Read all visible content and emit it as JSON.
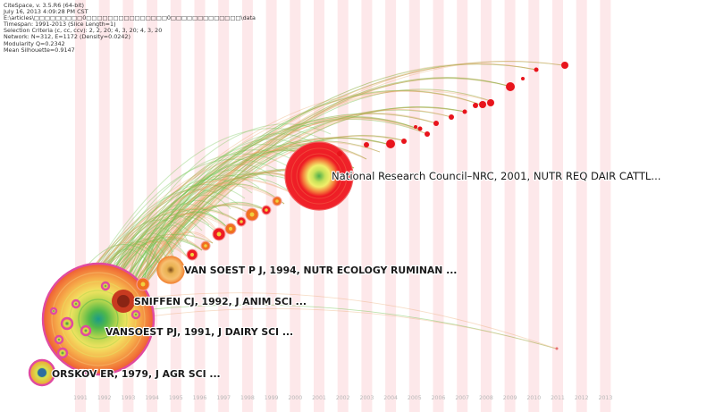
{
  "info_panel": {
    "lines": [
      "CiteSpace, v. 3.5.R6 (64-bit)",
      "July 16, 2013 4:09:28 PM CST",
      "E:\\articles\\□□□□□□□□□0□□□□□□□□□□□□□□□0□□□□□□□□□□□□□\\data",
      "Timespan: 1991-2013 (Slice Length=1)",
      "Selection Criteria (c, cc, ccv): 2, 2, 20; 4, 3, 20; 4, 3, 20",
      "Network: N=312, E=1172 (Density=0.0242)",
      "Modularity Q=0.2342",
      "Mean Silhouette=0.9147"
    ]
  },
  "timeline": {
    "years": [
      "1991",
      "1992",
      "1993",
      "1994",
      "1995",
      "1996",
      "1997",
      "1998",
      "1999",
      "2000",
      "2001",
      "2002",
      "2003",
      "2004",
      "2005",
      "2006",
      "2007",
      "2008",
      "2009",
      "2010",
      "2011",
      "2012",
      "2013"
    ]
  },
  "labels": [
    {
      "id": "nrc",
      "text": "National Research Council–NRC, 2001, NUTR REQ DAIR CATTL..."
    },
    {
      "id": "vansoest94",
      "text": "VAN SOEST  P J,    1994,  NUTR ECOLOGY RUMINAN ..."
    },
    {
      "id": "sniffen",
      "text": "SNIFFEN CJ,  1992,  J ANIM SCI ..."
    },
    {
      "id": "vansoest91",
      "text": "VANSOEST PJ,  1991,  J DAIRY SCI ..."
    },
    {
      "id": "orskov",
      "text": "ORSKOV ER,  1979,  J AGR SCI ..."
    }
  ],
  "colors": {
    "year_band": "#fde8ea",
    "node_red": "#ee1c24",
    "ring_pink": "#e04aa0",
    "link_green": "#6cc24a",
    "link_orange": "#e8a060"
  }
}
